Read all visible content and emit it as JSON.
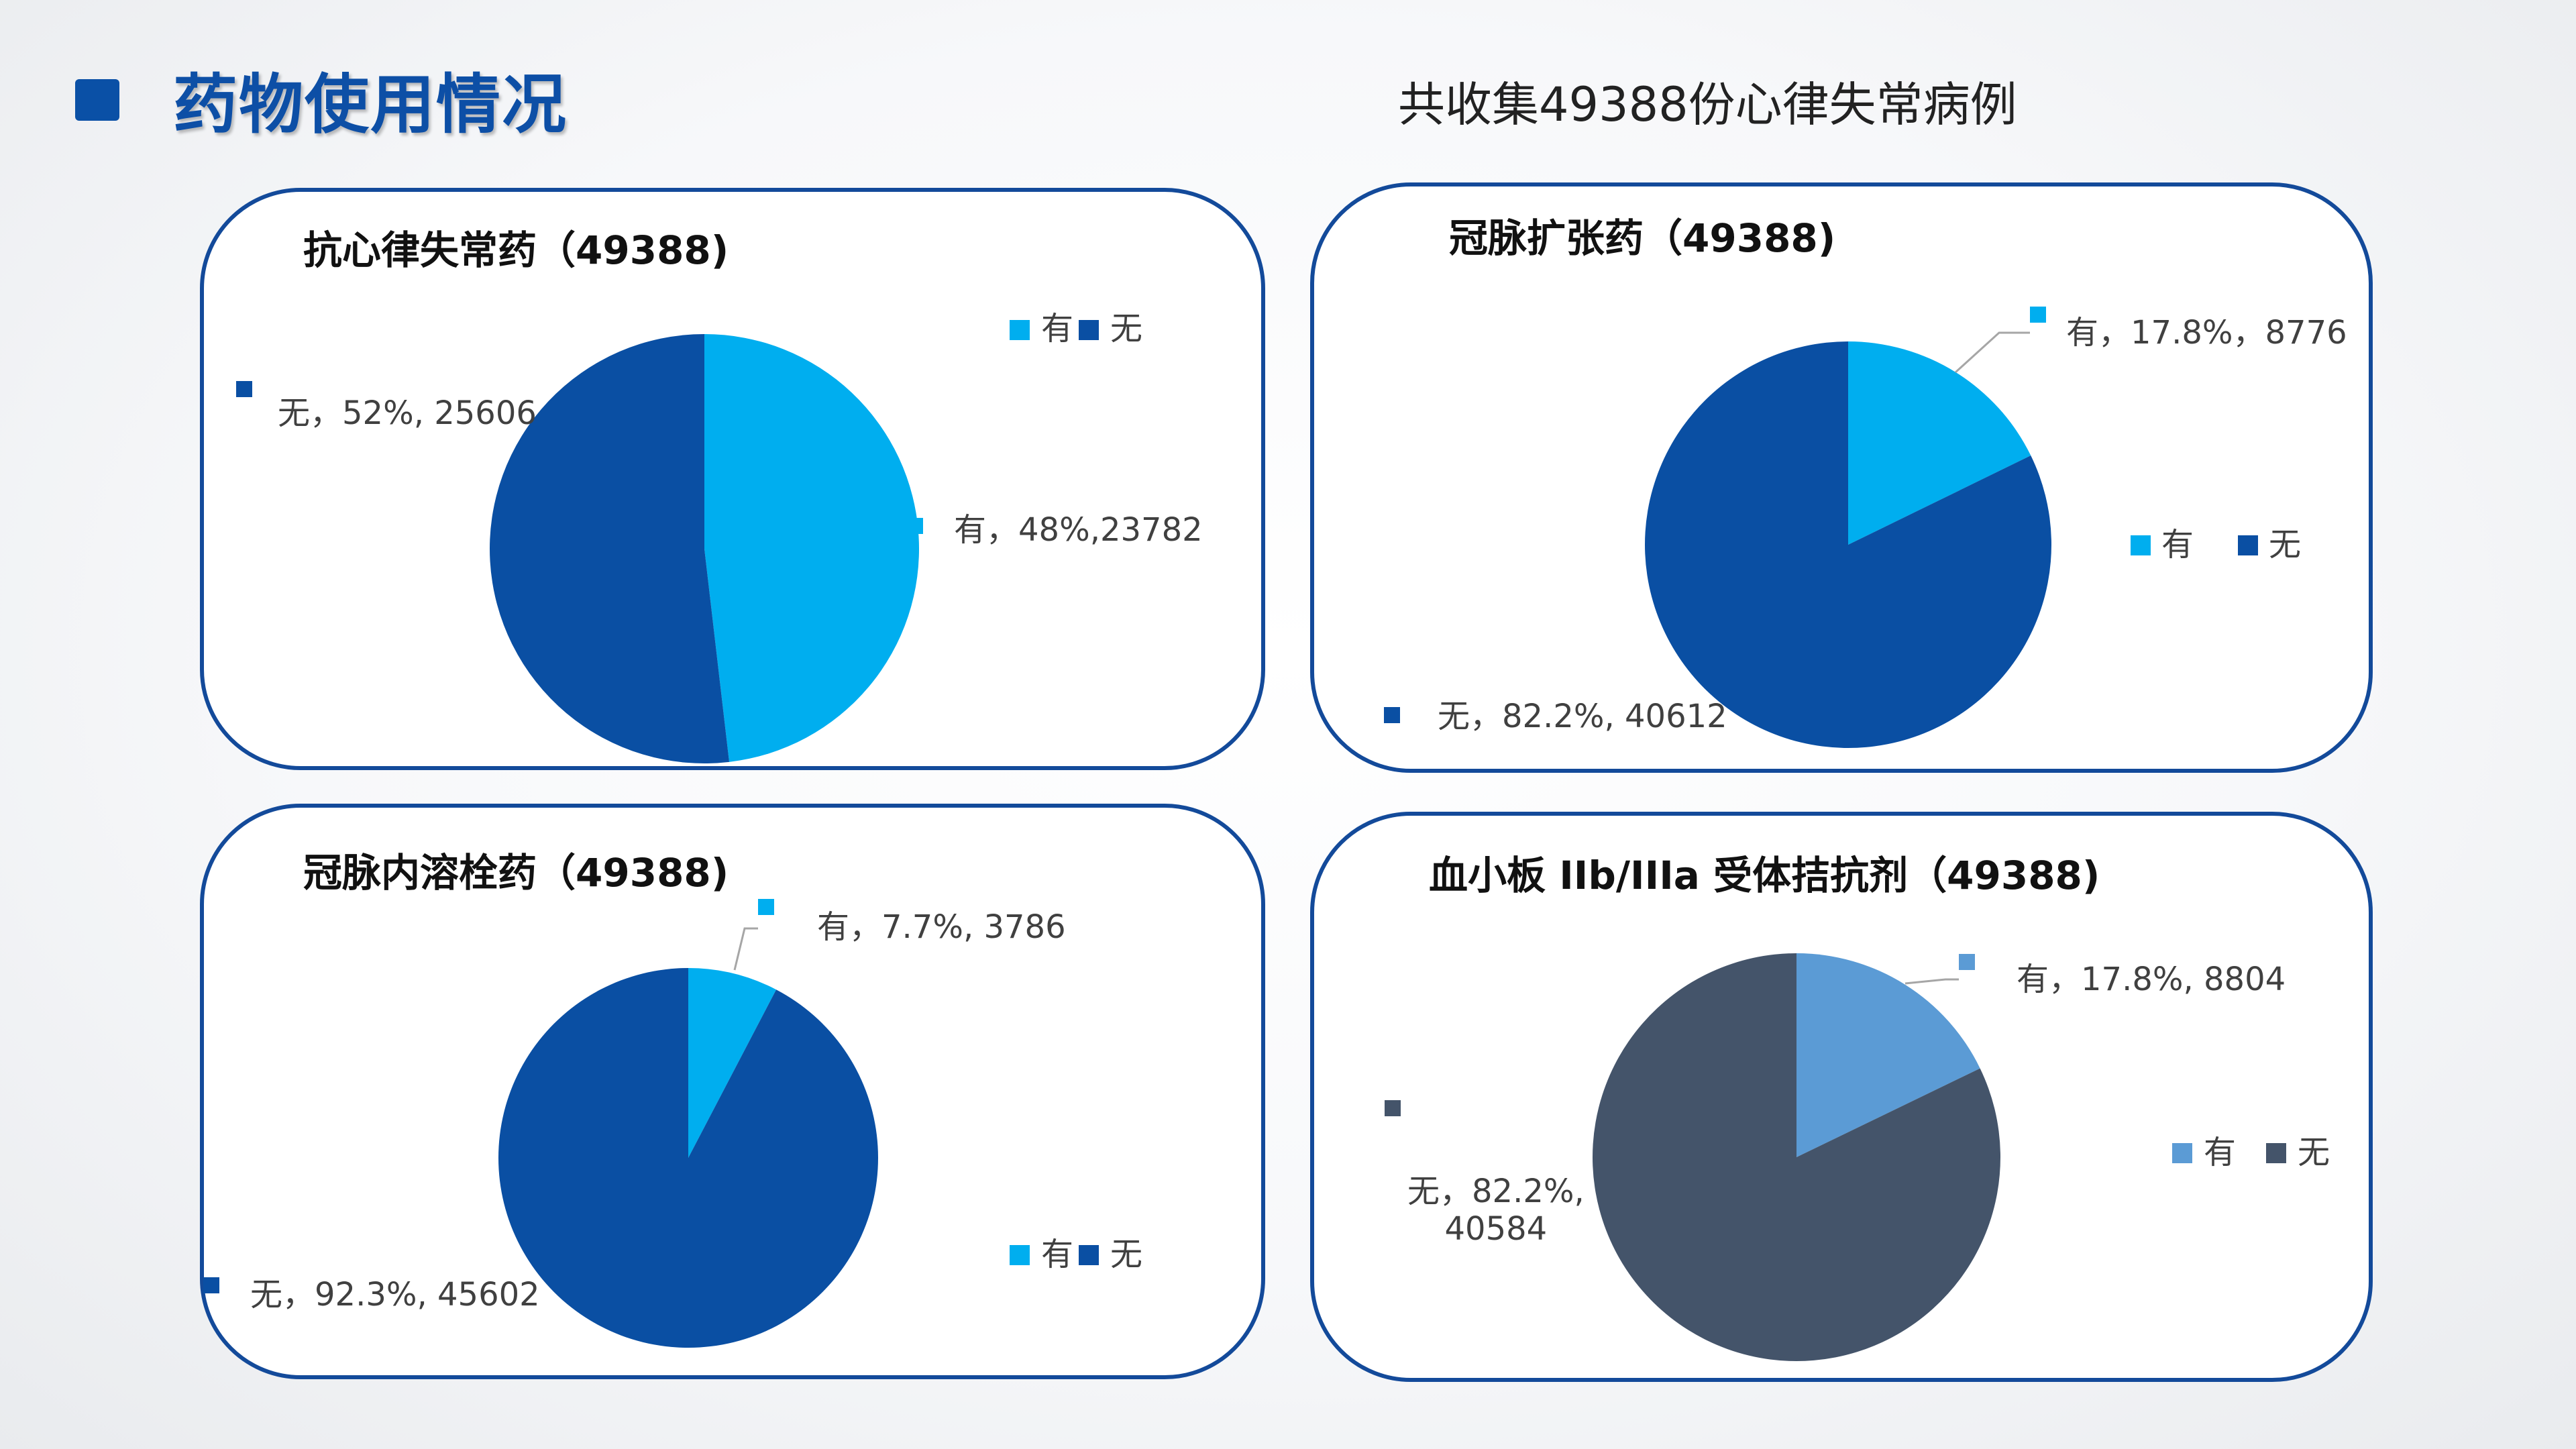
{
  "page": {
    "title": "药物使用情况",
    "subtitle": "共收集49388份心律失常病例"
  },
  "colors": {
    "accent": "#0a50a6",
    "panel_border": "#134a9a",
    "yes_blue": "#00aeef",
    "no_blue": "#0a4fa3",
    "yes_light": "#5b9bd5",
    "no_slate": "#44546a"
  },
  "chart_data": [
    {
      "type": "pie",
      "title": "抗心律失常药（49388)",
      "legend": [
        "有",
        "无"
      ],
      "slices": [
        {
          "name": "有",
          "value": 23782,
          "percent": 48,
          "label": "有，48%,23782",
          "color": "#00aeef"
        },
        {
          "name": "无",
          "value": 25606,
          "percent": 52,
          "label": "无，52%, 25606",
          "color": "#0a4fa3"
        }
      ]
    },
    {
      "type": "pie",
      "title": "冠脉扩张药（49388)",
      "legend": [
        "有",
        "无"
      ],
      "slices": [
        {
          "name": "有",
          "value": 8776,
          "percent": 17.8,
          "label": "有，17.8%，8776",
          "color": "#00aeef"
        },
        {
          "name": "无",
          "value": 40612,
          "percent": 82.2,
          "label": "无，82.2%, 40612",
          "color": "#0a4fa3"
        }
      ]
    },
    {
      "type": "pie",
      "title": "冠脉内溶栓药（49388)",
      "legend": [
        "有",
        "无"
      ],
      "slices": [
        {
          "name": "有",
          "value": 3786,
          "percent": 7.7,
          "label": "有，7.7%, 3786",
          "color": "#00aeef"
        },
        {
          "name": "无",
          "value": 45602,
          "percent": 92.3,
          "label": "无，92.3%, 45602",
          "color": "#0a4fa3"
        }
      ]
    },
    {
      "type": "pie",
      "title": "血小板 IIb/IIIa 受体拮抗剂（49388)",
      "legend": [
        "有",
        "无"
      ],
      "slices": [
        {
          "name": "有",
          "value": 8804,
          "percent": 17.8,
          "label": "有，17.8%, 8804",
          "color": "#5b9bd5"
        },
        {
          "name": "无",
          "value": 40584,
          "percent": 82.2,
          "label": "无，82.2%,\n40584",
          "color": "#44546a"
        }
      ]
    }
  ]
}
